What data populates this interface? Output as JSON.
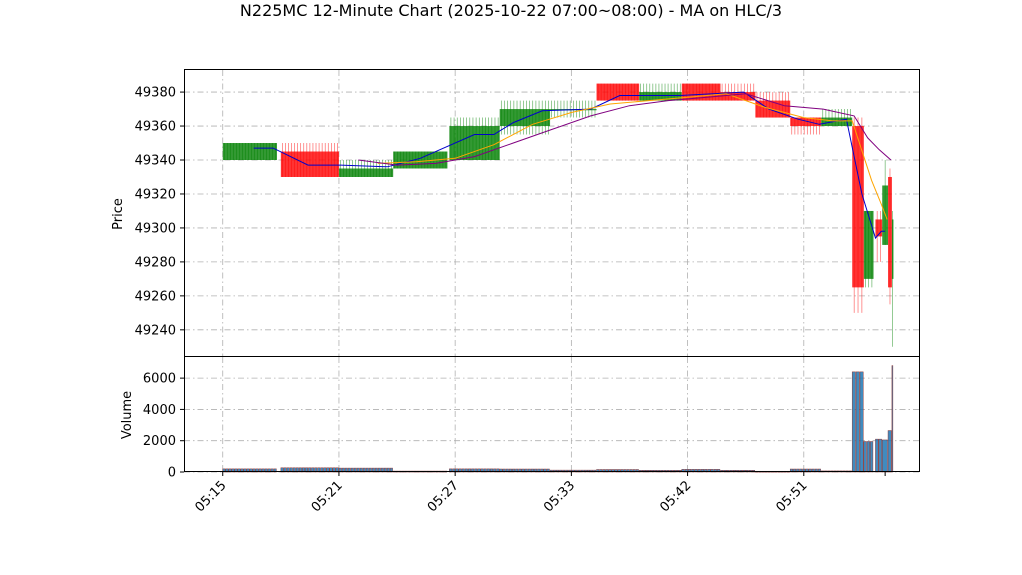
{
  "chart_data": {
    "type": "candlestick",
    "title": "N225MC 12-Minute Chart (2025-10-22 07:00~08:00) - MA on HLC/3",
    "price_ylabel": "Price",
    "volume_ylabel": "Volume",
    "xtick_labels": [
      "05:15",
      "05:21",
      "05:27",
      "05:33",
      "05:42",
      "05:51"
    ],
    "xtick_positions": [
      0,
      6,
      12,
      18,
      24,
      30
    ],
    "x_range": [
      -2,
      36
    ],
    "price_ylim": [
      49224,
      49393
    ],
    "price_yticks": [
      49240,
      49260,
      49280,
      49300,
      49320,
      49340,
      49360,
      49380
    ],
    "volume_ylim": [
      0,
      7350
    ],
    "volume_yticks": [
      0,
      2000,
      4000,
      6000
    ],
    "grid": true,
    "colors": {
      "up": "#008000",
      "down": "#ff0000",
      "ma_fast": "#0000cc",
      "ma_mid": "#ffa500",
      "ma_slow": "#800080",
      "grid": "#b0b0b0",
      "volume_bar": "#1f77b4",
      "volume_edge": "#8b3a3a"
    },
    "candles": [
      {
        "x": 0.0,
        "w": 2.8,
        "open": 49340,
        "close": 49350,
        "high": 49350,
        "low": 49340
      },
      {
        "x": 3.0,
        "w": 3.0,
        "open": 49345,
        "close": 49330,
        "high": 49350,
        "low": 49330
      },
      {
        "x": 6.0,
        "w": 2.8,
        "open": 49330,
        "close": 49335,
        "high": 49340,
        "low": 49330
      },
      {
        "x": 8.8,
        "w": 2.8,
        "open": 49335,
        "close": 49345,
        "high": 49345,
        "low": 49335
      },
      {
        "x": 11.7,
        "w": 2.6,
        "open": 49340,
        "close": 49360,
        "high": 49365,
        "low": 49340
      },
      {
        "x": 14.3,
        "w": 2.6,
        "open": 49360,
        "close": 49370,
        "high": 49375,
        "low": 49355
      },
      {
        "x": 16.9,
        "w": 2.4,
        "open": 49370,
        "close": 49370,
        "high": 49375,
        "low": 49365
      },
      {
        "x": 19.3,
        "w": 2.2,
        "open": 49385,
        "close": 49375,
        "high": 49385,
        "low": 49375
      },
      {
        "x": 21.5,
        "w": 2.2,
        "open": 49375,
        "close": 49380,
        "high": 49385,
        "low": 49375
      },
      {
        "x": 23.7,
        "w": 2.0,
        "open": 49385,
        "close": 49375,
        "high": 49385,
        "low": 49375
      },
      {
        "x": 25.7,
        "w": 1.8,
        "open": 49380,
        "close": 49375,
        "high": 49385,
        "low": 49375
      },
      {
        "x": 27.5,
        "w": 1.8,
        "open": 49375,
        "close": 49365,
        "high": 49380,
        "low": 49365
      },
      {
        "x": 29.3,
        "w": 1.6,
        "open": 49365,
        "close": 49360,
        "high": 49365,
        "low": 49355
      },
      {
        "x": 30.9,
        "w": 1.6,
        "open": 49360,
        "close": 49365,
        "high": 49370,
        "low": 49360
      },
      {
        "x": 32.5,
        "w": 0.6,
        "open": 49360,
        "close": 49265,
        "high": 49365,
        "low": 49250
      },
      {
        "x": 33.1,
        "w": 0.5,
        "open": 49270,
        "close": 49310,
        "high": 49310,
        "low": 49265
      },
      {
        "x": 33.7,
        "w": 0.35,
        "open": 49305,
        "close": 49295,
        "high": 49310,
        "low": 49280
      },
      {
        "x": 34.05,
        "w": 0.3,
        "open": 49290,
        "close": 49325,
        "high": 49340,
        "low": 49290
      },
      {
        "x": 34.35,
        "w": 0.2,
        "open": 49330,
        "close": 49265,
        "high": 49335,
        "low": 49255
      },
      {
        "x": 34.55,
        "w": 0.08,
        "open": 49270,
        "close": 49305,
        "high": 49310,
        "low": 49230
      }
    ],
    "volumes": [
      {
        "x": 0.0,
        "w": 2.8,
        "v": 200
      },
      {
        "x": 3.0,
        "w": 3.0,
        "v": 270
      },
      {
        "x": 6.0,
        "w": 2.8,
        "v": 250
      },
      {
        "x": 8.8,
        "w": 2.8,
        "v": 60
      },
      {
        "x": 11.7,
        "w": 2.6,
        "v": 200
      },
      {
        "x": 14.3,
        "w": 2.6,
        "v": 190
      },
      {
        "x": 16.9,
        "w": 2.4,
        "v": 120
      },
      {
        "x": 19.3,
        "w": 2.2,
        "v": 160
      },
      {
        "x": 21.5,
        "w": 2.2,
        "v": 110
      },
      {
        "x": 23.7,
        "w": 2.0,
        "v": 170
      },
      {
        "x": 25.7,
        "w": 1.8,
        "v": 110
      },
      {
        "x": 27.5,
        "w": 1.8,
        "v": 50
      },
      {
        "x": 29.3,
        "w": 1.6,
        "v": 190
      },
      {
        "x": 30.9,
        "w": 1.6,
        "v": 70
      },
      {
        "x": 32.5,
        "w": 0.6,
        "v": 6400
      },
      {
        "x": 33.1,
        "w": 0.5,
        "v": 1950
      },
      {
        "x": 33.7,
        "w": 0.35,
        "v": 2100
      },
      {
        "x": 34.05,
        "w": 0.3,
        "v": 2050
      },
      {
        "x": 34.35,
        "w": 0.2,
        "v": 2650
      },
      {
        "x": 34.55,
        "w": 0.08,
        "v": 6800
      }
    ],
    "ma_series": [
      {
        "key": "ma_fast",
        "x": [
          1.6,
          2.6,
          4.4,
          6.1,
          8.5,
          10.2,
          13.0,
          14.0,
          15.0,
          16.5,
          19.0,
          20.5,
          23.6,
          26.9,
          28.2,
          29.7,
          30.8,
          32.2,
          33.0,
          33.7,
          34.0,
          34.2
        ],
        "y": [
          49347,
          49347,
          49337,
          49337,
          49336,
          49341,
          49355,
          49355,
          49362,
          49369,
          49370,
          49378,
          49378,
          49380,
          49370,
          49364,
          49361,
          49364,
          49320,
          49294,
          49298,
          49298
        ]
      },
      {
        "key": "ma_mid",
        "x": [
          8.0,
          10.0,
          12.0,
          14.0,
          16.0,
          18.0,
          20.0,
          22.0,
          24.0,
          26.0,
          28.0,
          30.0,
          31.5,
          32.5,
          33.5,
          34.0,
          34.3
        ],
        "y": [
          49338,
          49339,
          49341,
          49349,
          49361,
          49368,
          49373,
          49375,
          49377,
          49379,
          49371,
          49365,
          49363,
          49363,
          49328,
          49314,
          49305
        ]
      },
      {
        "key": "ma_slow",
        "x": [
          7.0,
          9.0,
          11.0,
          13.0,
          15.0,
          17.0,
          19.0,
          21.0,
          23.0,
          25.0,
          27.0,
          29.0,
          31.0,
          32.6,
          33.3,
          33.9,
          34.5
        ],
        "y": [
          49340,
          49337,
          49338,
          49342,
          49350,
          49358,
          49366,
          49372,
          49375,
          49377,
          49379,
          49372,
          49370,
          49366,
          49353,
          49346,
          49340
        ]
      }
    ]
  }
}
